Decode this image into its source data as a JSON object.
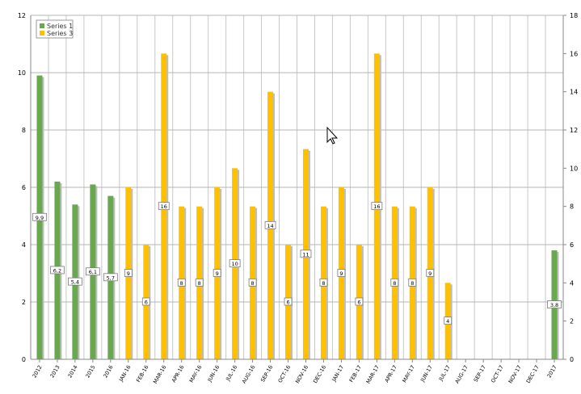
{
  "chart_data": {
    "type": "bar",
    "categories": [
      "2012",
      "2013",
      "2014",
      "2015",
      "2016",
      "JAN-16",
      "FEB-16",
      "MAR-16",
      "APR-16",
      "MAY-16",
      "JUN-16",
      "JUL-16",
      "AUG-16",
      "SEP-16",
      "OCT-16",
      "NOV-16",
      "DEC-16",
      "JAN-17",
      "FEB-17",
      "MAR-17",
      "APR-17",
      "MAY-17",
      "JUN-17",
      "JUL-17",
      "AUG-17",
      "SEP-17",
      "OCT-17",
      "NOV-17",
      "DEC-17",
      "2017"
    ],
    "series": [
      {
        "name": "Series 1",
        "axis": "left",
        "color": "#6aa84f",
        "values": [
          9.9,
          6.2,
          5.4,
          6.1,
          5.7,
          null,
          null,
          null,
          null,
          null,
          null,
          null,
          null,
          null,
          null,
          null,
          null,
          null,
          null,
          null,
          null,
          null,
          null,
          null,
          null,
          null,
          null,
          null,
          null,
          3.8
        ],
        "labels": [
          "9,9",
          "6,2",
          "5,4",
          "6,1",
          "5,7",
          null,
          null,
          null,
          null,
          null,
          null,
          null,
          null,
          null,
          null,
          null,
          null,
          null,
          null,
          null,
          null,
          null,
          null,
          null,
          null,
          null,
          null,
          null,
          null,
          "3,8"
        ]
      },
      {
        "name": "Series 3",
        "axis": "right",
        "color": "#ffc000",
        "values": [
          null,
          null,
          null,
          null,
          null,
          9,
          6,
          16,
          8,
          8,
          9,
          10,
          8,
          14,
          6,
          11,
          8,
          9,
          6,
          16,
          8,
          8,
          9,
          4,
          null,
          null,
          null,
          null,
          null,
          null
        ],
        "labels": [
          null,
          null,
          null,
          null,
          null,
          "9",
          "6",
          "16",
          "8",
          "8",
          "9",
          "10",
          "8",
          "14",
          "6",
          "11",
          "8",
          "9",
          "6",
          "16",
          "8",
          "8",
          "9",
          "4",
          null,
          null,
          null,
          null,
          null,
          null
        ]
      }
    ],
    "yticks_left": [
      "0",
      "2",
      "4",
      "6",
      "8",
      "10",
      "12"
    ],
    "yticks_right": [
      "0",
      "2",
      "4",
      "6",
      "8",
      "10",
      "12",
      "14",
      "16",
      "18"
    ],
    "ylim_left": [
      0,
      12
    ],
    "ylim_right": [
      0,
      18
    ],
    "grid": true,
    "legend": "top-left"
  }
}
